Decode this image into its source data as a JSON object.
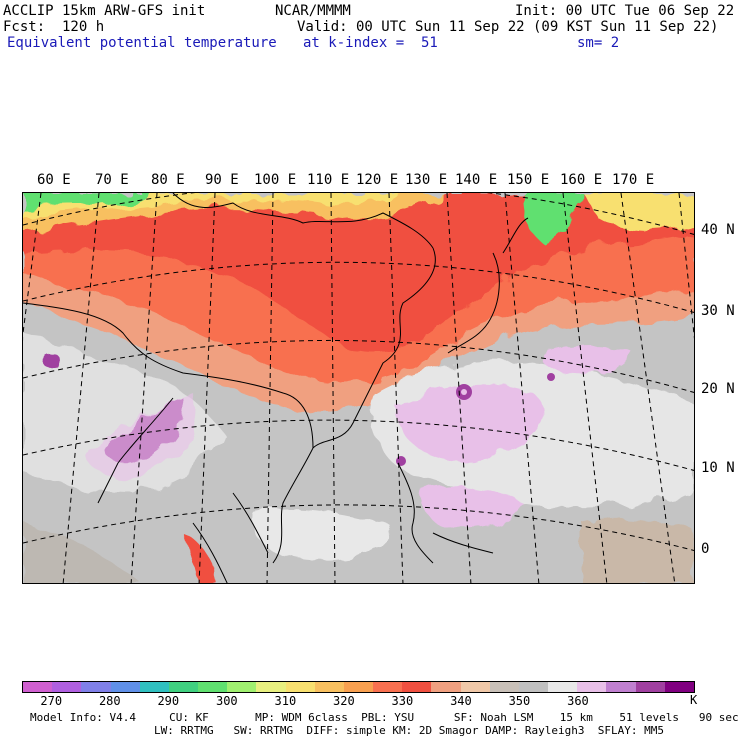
{
  "header": {
    "model": "ACCLIP 15km ARW-GFS init",
    "org": "NCAR/MMMM",
    "init": "Init: 00 UTC Tue 06 Sep 22",
    "fcst": "Fcst:  120 h",
    "valid": "Valid: 00 UTC Sun 11 Sep 22 (09 KST Sun 11 Sep 22)",
    "field": "Equivalent potential temperature",
    "level": "at k-index =  51",
    "smooth": "sm= 2"
  },
  "map": {
    "lon_labels": [
      "60 E",
      "70 E",
      "80 E",
      "90 E",
      "100 E",
      "110 E",
      "120 E",
      "130 E",
      "140 E",
      "150 E",
      "160 E",
      "170 E"
    ],
    "lat_labels": [
      "40 N",
      "30 N",
      "20 N",
      "10 N",
      "0"
    ]
  },
  "colorbar": {
    "unit": "K",
    "colors": [
      "#d060d0",
      "#b060e0",
      "#8080e8",
      "#6090e8",
      "#30c0c0",
      "#40d080",
      "#60e070",
      "#a0f070",
      "#e8f080",
      "#f8e070",
      "#f8c060",
      "#f8a050",
      "#f87050",
      "#f05040",
      "#f0a080",
      "#f0c8a8",
      "#c8c0b8",
      "#c0c0c0",
      "#e8e8e8",
      "#e8c0e8",
      "#c080d0",
      "#a040a0",
      "#800080"
    ],
    "ticks": [
      "270",
      "280",
      "290",
      "300",
      "310",
      "320",
      "330",
      "340",
      "350",
      "360"
    ]
  },
  "footer": {
    "line1": "Model Info: V4.4     CU: KF       MP: WDM 6class  PBL: YSU      SF: Noah LSM    15 km    51 levels   90 sec",
    "line2": "LW: RRTMG   SW: RRTMG  DIFF: simple KM: 2D Smagor DAMP: Rayleigh3  SFLAY: MM5"
  }
}
